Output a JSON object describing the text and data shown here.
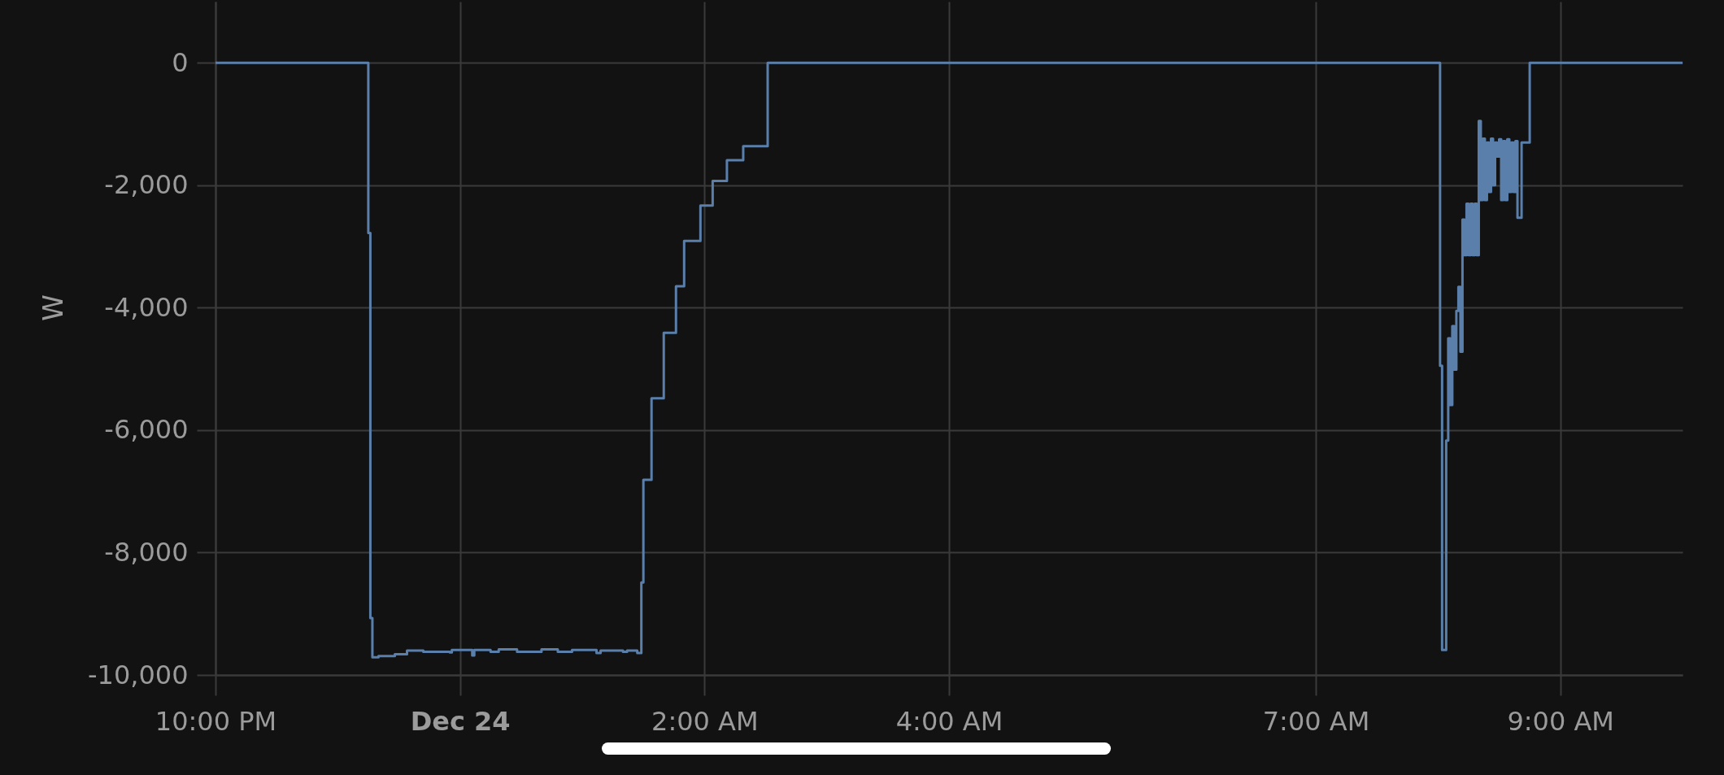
{
  "chart_data": {
    "type": "step",
    "ylabel": "W",
    "color": "#5a7fab",
    "grid": true,
    "xlim": [
      "--12-23T22:00",
      "--12-24T10:00"
    ],
    "xticks": [
      {
        "value": "--12-23T22:00",
        "label": "10:00 PM"
      },
      {
        "value": "--12-24T00:00",
        "label": "Dec 24"
      },
      {
        "value": "--12-24T02:00",
        "label": "2:00 AM"
      },
      {
        "value": "--12-24T04:00",
        "label": "4:00 AM"
      },
      {
        "value": "--12-24T07:00",
        "label": "7:00 AM"
      },
      {
        "value": "--12-24T09:00",
        "label": "9:00 AM"
      }
    ],
    "ylim": [
      -10000,
      1000
    ],
    "yticks": [
      {
        "value": -10000,
        "label": "-10,000"
      },
      {
        "value": -8000,
        "label": "-8,000"
      },
      {
        "value": -6000,
        "label": "-6,000"
      },
      {
        "value": -4000,
        "label": "-4,000"
      },
      {
        "value": -2000,
        "label": "-2,000"
      },
      0
    ],
    "x": [
      "--12-23T22:00",
      "--12-23T23:15",
      "--12-23T23:16",
      "--12-23T23:17",
      "--12-23T23:20",
      "--12-23T23:28",
      "--12-23T23:34",
      "--12-23T23:42",
      "--12-23T23:55",
      "--12-23T23:56",
      "--12-24T00:06",
      "--12-24T00:07",
      "--12-24T00:15",
      "--12-24T00:19",
      "--12-24T00:28",
      "--12-24T00:40",
      "--12-24T00:48",
      "--12-24T00:55",
      "--12-24T01:07",
      "--12-24T01:09",
      "--12-24T01:20",
      "--12-24T01:22",
      "--12-24T01:27",
      "--12-24T01:29",
      "--12-24T01:30",
      "--12-24T01:34",
      "--12-24T01:40",
      "--12-24T01:46",
      "--12-24T01:50",
      "--12-24T01:58",
      "--12-24T02:04",
      "--12-24T02:11",
      "--12-24T02:19",
      "--12-24T02:31",
      "--12-24T08:01",
      "--12-24T08:02",
      "--12-24T08:04",
      "--12-24T08:05",
      "--12-24T08:06",
      "--12-24T08:07",
      "--12-24T08:08",
      "--12-24T08:09",
      "--12-24T08:10",
      "--12-24T08:11",
      "--12-24T08:12",
      "--12-24T08:13",
      "--12-24T08:14",
      "--12-24T08:15",
      "--12-24T08:16",
      "--12-24T08:17",
      "--12-24T08:18",
      "--12-24T08:19",
      "--12-24T08:20",
      "--12-24T08:21",
      "--12-24T08:22",
      "--12-24T08:23",
      "--12-24T08:24",
      "--12-24T08:25",
      "--12-24T08:26",
      "--12-24T08:27",
      "--12-24T08:28",
      "--12-24T08:29",
      "--12-24T08:30",
      "--12-24T08:31",
      "--12-24T08:32",
      "--12-24T08:33",
      "--12-24T08:34",
      "--12-24T08:35",
      "--12-24T08:36",
      "--12-24T08:37",
      "--12-24T08:38",
      "--12-24T08:39",
      "--12-24T08:41",
      "--12-24T08:45",
      "--12-24T10:00"
    ],
    "values": [
      0,
      -2780,
      -9070,
      -9710,
      -9690,
      -9660,
      -9600,
      -9620,
      -9630,
      -9590,
      -9680,
      -9590,
      -9620,
      -9580,
      -9620,
      -9580,
      -9620,
      -9590,
      -9640,
      -9600,
      -9620,
      -9600,
      -9640,
      -8490,
      -6810,
      -5480,
      -4410,
      -3650,
      -2910,
      -2330,
      -1930,
      -1590,
      -1360,
      0,
      -4950,
      -9590,
      -6170,
      -4500,
      -5590,
      -4300,
      -5010,
      -4050,
      -3660,
      -4720,
      -2560,
      -3140,
      -2300,
      -3140,
      -2300,
      -3140,
      -2300,
      -3140,
      -950,
      -2240,
      -1240,
      -2240,
      -1300,
      -2110,
      -1240,
      -2000,
      -1300,
      -1530,
      -1250,
      -2240,
      -1280,
      -2240,
      -1250,
      -2110,
      -1300,
      -2110,
      -1280,
      -2530,
      -1300,
      0,
      0
    ]
  }
}
